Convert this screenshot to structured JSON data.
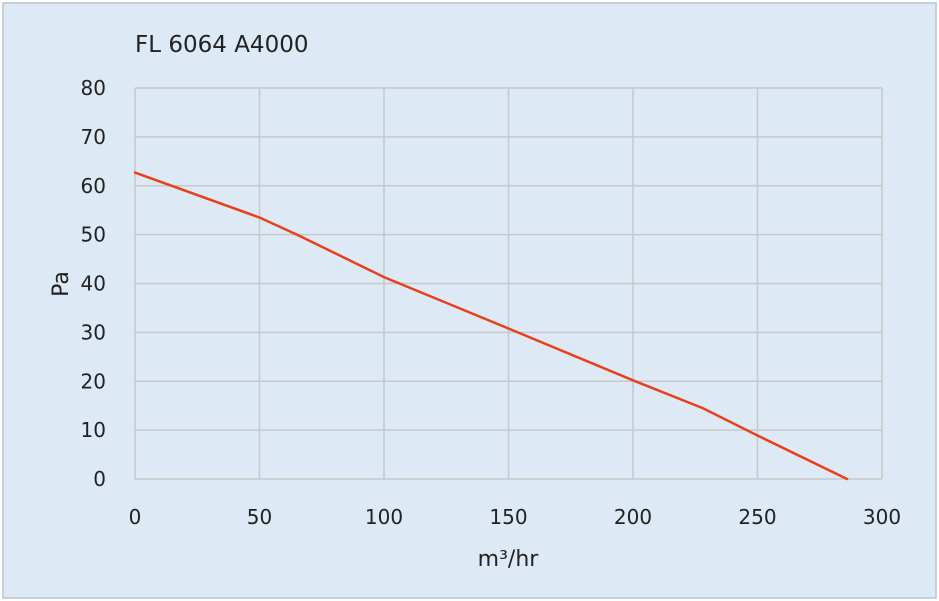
{
  "chart_data": {
    "type": "line",
    "title": "FL 6064 A4000",
    "xlabel": "m³/hr",
    "ylabel": "Pa",
    "xlim": [
      0,
      300
    ],
    "ylim": [
      0,
      80
    ],
    "x_ticks": [
      0,
      50,
      100,
      150,
      200,
      250,
      300
    ],
    "y_ticks": [
      0,
      10,
      20,
      30,
      40,
      50,
      60,
      70,
      80
    ],
    "grid": true,
    "legend": "none",
    "series": [
      {
        "color": "#e8401c",
        "x": [
          0,
          50,
          65,
          100,
          150,
          200,
          228,
          250,
          286
        ],
        "y": [
          62.7,
          53.5,
          50,
          41.3,
          30.8,
          20.2,
          14.5,
          8.9,
          0
        ]
      }
    ]
  },
  "style": {
    "background": "#dde9f5",
    "frame": "#b8c4d0",
    "grid": "#c8c8c8"
  }
}
